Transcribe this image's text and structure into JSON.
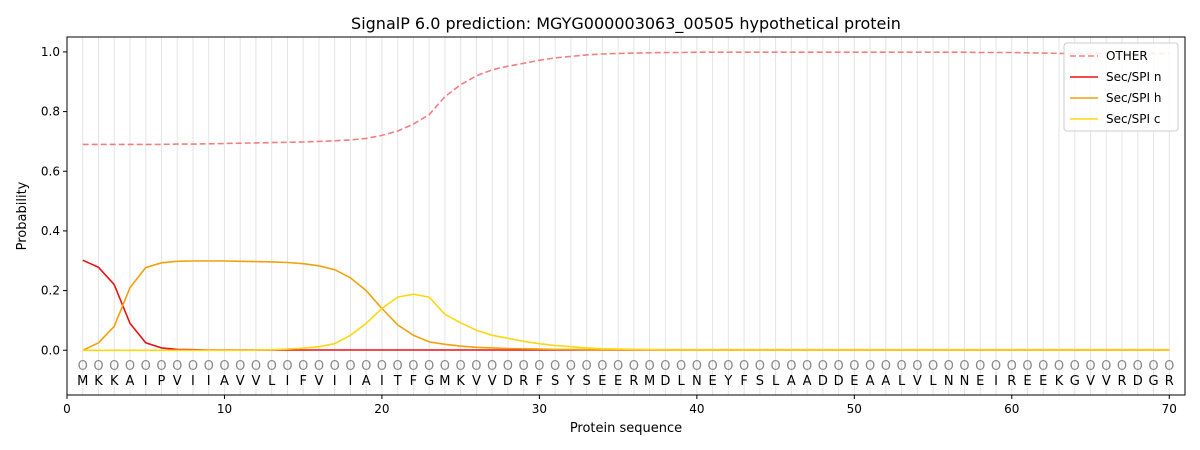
{
  "chart_data": {
    "type": "line",
    "title": "SignalP 6.0 prediction: MGYG000003063_00505 hypothetical protein",
    "xlabel": "Protein sequence",
    "ylabel": "Probability",
    "xlim": [
      0,
      71
    ],
    "ylim": [
      -0.15,
      1.05
    ],
    "x_ticks": [
      0,
      10,
      20,
      30,
      40,
      50,
      60,
      70
    ],
    "y_ticks": [
      0.0,
      0.2,
      0.4,
      0.6,
      0.8,
      1.0
    ],
    "y_tick_labels": [
      "0.0",
      "0.2",
      "0.4",
      "0.6",
      "0.8",
      "1.0"
    ],
    "legend_position": "top-right",
    "sequence": [
      "M",
      "K",
      "K",
      "A",
      "I",
      "P",
      "V",
      "I",
      "I",
      "A",
      "V",
      "V",
      "L",
      "I",
      "F",
      "V",
      "I",
      "I",
      "A",
      "I",
      "T",
      "F",
      "G",
      "M",
      "K",
      "V",
      "V",
      "D",
      "R",
      "F",
      "S",
      "Y",
      "S",
      "E",
      "E",
      "R",
      "M",
      "D",
      "L",
      "N",
      "E",
      "Y",
      "F",
      "S",
      "L",
      "A",
      "A",
      "D",
      "D",
      "E",
      "A",
      "A",
      "L",
      "V",
      "L",
      "N",
      "N",
      "E",
      "I",
      "R",
      "E",
      "E",
      "K",
      "G",
      "V",
      "V",
      "R",
      "D",
      "G",
      "R"
    ],
    "region_marker": "O",
    "series": [
      {
        "name": "OTHER",
        "color": "#f08080",
        "dashed": true,
        "values": [
          0.69,
          0.69,
          0.69,
          0.69,
          0.69,
          0.69,
          0.691,
          0.691,
          0.692,
          0.693,
          0.694,
          0.695,
          0.696,
          0.697,
          0.698,
          0.7,
          0.702,
          0.705,
          0.71,
          0.72,
          0.735,
          0.758,
          0.79,
          0.85,
          0.89,
          0.92,
          0.94,
          0.952,
          0.962,
          0.972,
          0.98,
          0.985,
          0.99,
          0.993,
          0.995,
          0.996,
          0.997,
          0.998,
          0.998,
          0.999,
          0.999,
          0.999,
          0.999,
          0.999,
          0.999,
          0.999,
          0.999,
          0.999,
          0.999,
          0.999,
          0.999,
          0.999,
          0.999,
          0.999,
          0.999,
          0.999,
          0.999,
          0.998,
          0.998,
          0.998,
          0.997,
          0.996,
          0.995,
          0.995,
          0.995,
          0.995,
          0.995,
          0.995,
          0.995,
          0.995
        ]
      },
      {
        "name": "Sec/SPI n",
        "color": "#ee1111",
        "dashed": false,
        "values": [
          0.302,
          0.278,
          0.22,
          0.09,
          0.025,
          0.008,
          0.003,
          0.002,
          0.001,
          0.001,
          0.001,
          0.001,
          0.001,
          0.001,
          0.001,
          0.001,
          0.001,
          0.001,
          0.001,
          0.001,
          0.001,
          0.001,
          0.001,
          0.001,
          0.001,
          0.001,
          0.001,
          0.001,
          0.001,
          0.001,
          0.001,
          0.001,
          0.001,
          0.001,
          0.001,
          0.001,
          0.001,
          0.001,
          0.001,
          0.001,
          0.001,
          0.001,
          0.001,
          0.001,
          0.001,
          0.001,
          0.001,
          0.001,
          0.001,
          0.001,
          0.001,
          0.001,
          0.001,
          0.001,
          0.001,
          0.001,
          0.001,
          0.001,
          0.001,
          0.001,
          0.001,
          0.001,
          0.001,
          0.001,
          0.001,
          0.001,
          0.001,
          0.001,
          0.001,
          0.001
        ]
      },
      {
        "name": "Sec/SPI h",
        "color": "#f2a10c",
        "dashed": false,
        "values": [
          0.0,
          0.025,
          0.08,
          0.21,
          0.277,
          0.293,
          0.298,
          0.299,
          0.299,
          0.299,
          0.298,
          0.297,
          0.296,
          0.294,
          0.29,
          0.283,
          0.27,
          0.243,
          0.2,
          0.14,
          0.085,
          0.05,
          0.028,
          0.02,
          0.014,
          0.01,
          0.008,
          0.006,
          0.005,
          0.004,
          0.003,
          0.003,
          0.002,
          0.002,
          0.002,
          0.002,
          0.002,
          0.002,
          0.002,
          0.002,
          0.002,
          0.002,
          0.002,
          0.002,
          0.002,
          0.002,
          0.002,
          0.002,
          0.002,
          0.002,
          0.002,
          0.002,
          0.002,
          0.002,
          0.002,
          0.002,
          0.002,
          0.002,
          0.002,
          0.002,
          0.002,
          0.002,
          0.002,
          0.002,
          0.002,
          0.002,
          0.002,
          0.002,
          0.002,
          0.002
        ]
      },
      {
        "name": "Sec/SPI c",
        "color": "#ffd70f",
        "dashed": false,
        "values": [
          0.0,
          0.0,
          0.0,
          0.0,
          0.0,
          0.0,
          0.0,
          0.0,
          0.0,
          0.0,
          0.0,
          0.001,
          0.002,
          0.004,
          0.007,
          0.012,
          0.022,
          0.05,
          0.09,
          0.14,
          0.178,
          0.188,
          0.178,
          0.12,
          0.092,
          0.067,
          0.05,
          0.04,
          0.03,
          0.022,
          0.016,
          0.012,
          0.008,
          0.005,
          0.004,
          0.003,
          0.002,
          0.001,
          0.001,
          0.001,
          0.001,
          0.001,
          0.001,
          0.001,
          0.001,
          0.001,
          0.001,
          0.001,
          0.001,
          0.001,
          0.001,
          0.001,
          0.001,
          0.001,
          0.001,
          0.001,
          0.001,
          0.001,
          0.001,
          0.001,
          0.001,
          0.001,
          0.001,
          0.001,
          0.001,
          0.001,
          0.001,
          0.001,
          0.001,
          0.001
        ]
      }
    ]
  }
}
